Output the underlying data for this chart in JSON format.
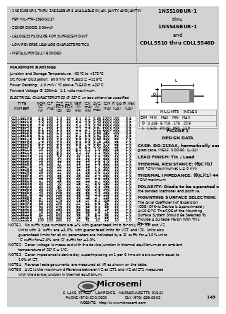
{
  "bg_color": [
    220,
    220,
    220
  ],
  "white": [
    255,
    255,
    255
  ],
  "black": [
    0,
    0,
    0
  ],
  "dark_gray": [
    80,
    80,
    80
  ],
  "med_gray": [
    160,
    160,
    160
  ],
  "light_gray": [
    200,
    200,
    200
  ],
  "header_bg": [
    210,
    210,
    210
  ],
  "title_right_lines": [
    "1N5510BUR-1",
    "thru",
    "1N5546BUR-1",
    "and",
    "CDLL5510 thru CDLL5546D"
  ],
  "title_right_bold": [
    true,
    false,
    true,
    false,
    true
  ],
  "bullet_lines": [
    "- 1N5510BUR-1 THRU 1N5546BUR-1 AVAILABLE IN JAN, JANTX AND JANTXV",
    "  PER MIL-PRF-19500/437",
    "- ZENER DIODE, 500mW",
    "- LEADLESS PACKAGE FOR SURFACE MOUNT",
    "- LOW REVERSE LEAKAGE CHARACTERISTICS",
    "- METALLURGICALLY BONDED"
  ],
  "max_ratings_title": "MAXIMUM RATINGS",
  "max_ratings_lines": [
    "Junction and Storage Temperature:  -65°C to +175°C",
    "DC Power Dissipation:  500 mW @ TLEAD = +125°C",
    "Power Derating:  4.0 mW / °C above TLEAD = +25°C",
    "Forward Voltage @ 200mA:  1.1 volts maximum"
  ],
  "elec_char_title": "ELECTRICAL CHARACTERISTICS @ 25°C, unless otherwise specified.",
  "table_hdr1": [
    "",
    "NOMINAL",
    "ZENER",
    "MAX ZENER IMPEDANCE",
    "REVERSE BREAKDOWN",
    "MAXIMUM",
    "MAXIMUM",
    "LEAKAGE"
  ],
  "table_hdr2": [
    "TYPE",
    "ZENER",
    "TEST",
    "ZZT AT IZT    ZZK AT IZK",
    "VOLTAGE-CURRENT",
    "REGULATOR",
    "DC ZENER",
    "CURRENT"
  ],
  "table_hdr3": [
    "NUMBER",
    "VOLTAGE",
    "CURRENT",
    "(Ω)              (Ω)",
    "VBR(V)min  IZK(mA)",
    "CURRENT",
    "CURRENT",
    "IR"
  ],
  "table_hdr4": [
    "",
    "VZ(V)",
    "IZT(mA)",
    "",
    "",
    "ΔVZ(V)",
    "IZM(mA)",
    "(uA)"
  ],
  "table_rows": [
    [
      "CDLL5510B",
      "3.6",
      "100",
      "1.0",
      "10",
      "3.1",
      "3.2",
      "0.36",
      "1000",
      "100",
      "0.5"
    ],
    [
      "CDLL5511B",
      "3.9",
      "100",
      "1.0",
      "10",
      "3.4",
      "3.6",
      "0.39",
      "1000",
      "100",
      "0.5"
    ],
    [
      "CDLL5512B",
      "4.3",
      "100",
      "1.0",
      "10",
      "3.7",
      "4.0",
      "0.43",
      "1000",
      "100",
      "0.5"
    ],
    [
      "CDLL5513B",
      "4.7",
      "100",
      "1.0",
      "10",
      "4.0",
      "4.3",
      "0.47",
      "1000",
      "100",
      "0.5"
    ],
    [
      "CDLL5514B",
      "5.1",
      "100",
      "1.0",
      "10",
      "4.4",
      "4.7",
      "0.51",
      "1000",
      "100",
      "0.5"
    ],
    [
      "CDLL5515B",
      "5.6",
      "100",
      "1.0",
      "10",
      "4.7",
      "5.1",
      "0.56",
      "980",
      "100",
      "0.5"
    ],
    [
      "CDLL5516B",
      "6.2",
      "100",
      "2.0",
      "10",
      "5.2",
      "5.6",
      "0.62",
      "890",
      "50",
      "0.5"
    ],
    [
      "CDLL5517B",
      "6.8",
      "100",
      "3.5",
      "10",
      "5.6",
      "6.2",
      "0.68",
      "810",
      "50",
      "0.5"
    ],
    [
      "CDLL5518B",
      "7.5",
      "100",
      "4.0",
      "10",
      "6.2",
      "6.8",
      "0.75",
      "730",
      "25",
      "1.0"
    ],
    [
      "CDLL5519B",
      "8.2",
      "100",
      "4.5",
      "10",
      "6.8",
      "7.5",
      "0.82",
      "670",
      "25",
      "1.0"
    ],
    [
      "CDLL5520B",
      "9.1",
      "100",
      "5.0",
      "10",
      "7.5",
      "8.2",
      "0.91",
      "600",
      "25",
      "1.0"
    ],
    [
      "CDLL5521B",
      "10",
      "100",
      "7.0",
      "10",
      "8.2",
      "9.1",
      "1.0",
      "550",
      "25",
      "1.0"
    ],
    [
      "CDLL5522B",
      "11",
      "100",
      "8.0",
      "10",
      "9.1",
      "10",
      "1.1",
      "500",
      "10",
      "1.0"
    ],
    [
      "CDLL5523B",
      "12",
      "100",
      "9.0",
      "10",
      "10",
      "11",
      "1.2",
      "460",
      "10",
      "1.0"
    ],
    [
      "CDLL5524B",
      "13",
      "100",
      "10",
      "10",
      "11",
      "12",
      "1.3",
      "420",
      "10",
      "1.0"
    ],
    [
      "CDLL5525B",
      "15",
      "100",
      "14",
      "10",
      "12",
      "13",
      "1.5",
      "370",
      "10",
      "1.0"
    ],
    [
      "CDLL5526B",
      "16",
      "100",
      "17",
      "10",
      "13",
      "14",
      "1.6",
      "340",
      "10",
      "1.0"
    ],
    [
      "CDLL5527B",
      "17",
      "100",
      "20",
      "10",
      "14",
      "15",
      "1.7",
      "320",
      "10",
      "1.0"
    ],
    [
      "CDLL5528B",
      "18",
      "100",
      "22",
      "10",
      "15",
      "16",
      "1.8",
      "300",
      "10",
      "1.0"
    ],
    [
      "CDLL5529B",
      "20",
      "100",
      "27",
      "10",
      "17",
      "18",
      "2.0",
      "270",
      "10",
      "1.0"
    ],
    [
      "CDLL5530B",
      "22",
      "100",
      "33",
      "10",
      "18",
      "20",
      "2.2",
      "250",
      "10",
      "1.0"
    ],
    [
      "CDLL5531B",
      "24",
      "100",
      "38",
      "10",
      "20",
      "22",
      "2.4",
      "230",
      "10",
      "1.0"
    ],
    [
      "CDLL5532B",
      "27",
      "100",
      "48",
      "10",
      "22",
      "24",
      "2.7",
      "200",
      "10",
      "1.0"
    ],
    [
      "CDLL5533B",
      "30",
      "100",
      "70",
      "10",
      "25",
      "27",
      "3.0",
      "180",
      "10",
      "1.0"
    ],
    [
      "CDLL5534B",
      "33",
      "100",
      "80",
      "10",
      "27",
      "30",
      "3.3",
      "165",
      "10",
      "1.0"
    ],
    [
      "CDLL5535B",
      "36",
      "100",
      "90",
      "10",
      "30",
      "33",
      "3.6",
      "150",
      "10",
      "1.0"
    ],
    [
      "CDLL5536B",
      "39",
      "100",
      "105",
      "10",
      "33",
      "36",
      "3.9",
      "140",
      "10",
      "1.0"
    ],
    [
      "CDLL5537B",
      "43",
      "100",
      "125",
      "10",
      "36",
      "39",
      "4.3",
      "125",
      "10",
      "1.0"
    ],
    [
      "CDLL5538B",
      "47",
      "100",
      "150",
      "10",
      "39",
      "43",
      "4.7",
      "115",
      "10",
      "1.0"
    ],
    [
      "CDLL5539B",
      "51",
      "100",
      "175",
      "10",
      "43",
      "47",
      "5.1",
      "105",
      "10",
      "1.0"
    ],
    [
      "CDLL5540B",
      "56",
      "100",
      "200",
      "10",
      "47",
      "51",
      "5.6",
      "95",
      "10",
      "1.0"
    ],
    [
      "CDLL5541B",
      "62",
      "100",
      "215",
      "10",
      "52",
      "56",
      "6.2",
      "86",
      "10",
      "1.0"
    ],
    [
      "CDLL5542B",
      "68",
      "100",
      "240",
      "10",
      "56",
      "62",
      "6.8",
      "78",
      "10",
      "1.0"
    ],
    [
      "CDLL5543B",
      "75",
      "100",
      "270",
      "10",
      "62",
      "68",
      "7.5",
      "71",
      "10",
      "1.0"
    ],
    [
      "CDLL5544B",
      "82",
      "100",
      "300",
      "10",
      "68",
      "75",
      "8.2",
      "65",
      "10",
      "1.0"
    ],
    [
      "CDLL5545B",
      "91",
      "100",
      "340",
      "10",
      "75",
      "82",
      "9.1",
      "58",
      "10",
      "1.0"
    ],
    [
      "CDLL5546B",
      "100",
      "100",
      "380",
      "10",
      "82",
      "91",
      "10",
      "53",
      "10",
      "1.0"
    ]
  ],
  "note_lines": [
    "NOTE 1   No suffix type numbers are ±% with guaranteed limits for only IZT, IZK and VZ.",
    "         Units with 'A' suffix are ±1.0%, with guaranteed limits for VZT, and IZK. Units also",
    "         guaranteed limits for all six parameters are indicated by a 'B' suffix for ±1.0% units,",
    "         'C' suffix for±2.0% and 'D' suffix for ±1.0%.",
    "NOTE 2   Zener voltage is measured with the device junction in thermal equilibrium at an ambient",
    "         temperature of 25°C ± 1°C.",
    "NOTE 3   Zener impedance is derived by superimposing on 1 per 6 Irms sine a/c current equal to",
    "         10% of IZT.",
    "NOTE 4   Reverse leakage currents are measured at VR as shown on the table.",
    "NOTE 5   ΔVZ is the maximum difference between VZ at IZT1 and VZ at IZT2 measured",
    "         with the device junction in thermal equilibrium."
  ],
  "design_data_lines": [
    "CASE: DO-213AA, hermetically sealed",
    "glass case. (MELF, SOD-80, LL-34)",
    "",
    "LEAD FINISH: Tin / Lead",
    "",
    "THERMAL RESISTANCE: (θJC)(1)",
    "500 °C/W maximum at L = 0 mm",
    "",
    "THERMAL IMPEDANCE: (θJL)(1) 44",
    "°C/W maximum",
    "",
    "POLARITY: Diode to be operated with",
    "the banded (cathode) end positive.",
    "",
    "MOUNTING SURFACE SELECTION:",
    "The Axial Coefficient of Expansion",
    "(COE) Of this Device is Approximately",
    "4x10-6/°C. The COE of the Mounting",
    "Surface System Should Be Selected To",
    "Provide A Suitable Match With This",
    "Device."
  ],
  "figure_title": "FIGURE 1",
  "design_data_title": "DESIGN DATA",
  "footer_logo": "Microsemi",
  "footer_address": "6  LAKE  STREET,  LAWRENCE,  MASSACHUSETTS  01841",
  "footer_phone": "PHONE (978) 620-2600                FAX (978) 689-0803",
  "footer_web": "WEBSITE:  http://www.microsemi.com",
  "footer_page": "143"
}
